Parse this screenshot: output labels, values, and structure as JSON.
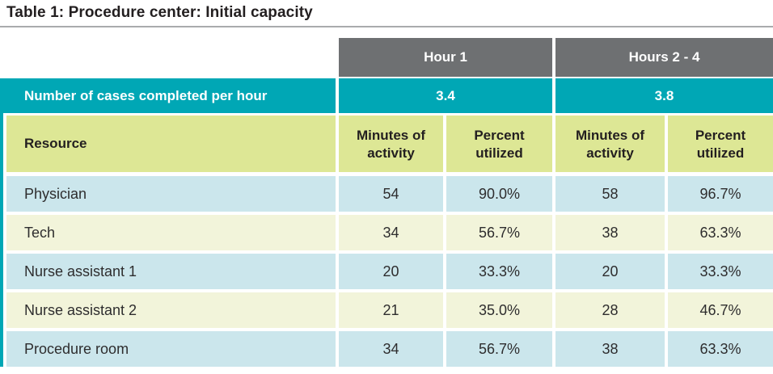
{
  "chart_data": {
    "type": "table",
    "title": "Table 1: Procedure center: Initial capacity",
    "group_headers": [
      "Hour 1",
      "Hours 2 - 4"
    ],
    "cases_label": "Number of cases completed per hour",
    "cases_values": [
      "3.4",
      "3.8"
    ],
    "columns": [
      "Resource",
      "Minutes of activity",
      "Percent utilized",
      "Minutes of activity",
      "Percent utilized"
    ],
    "rows": [
      {
        "resource": "Physician",
        "values": [
          "54",
          "90.0%",
          "58",
          "96.7%"
        ]
      },
      {
        "resource": "Tech",
        "values": [
          "34",
          "56.7%",
          "38",
          "63.3%"
        ]
      },
      {
        "resource": "Nurse assistant 1",
        "values": [
          "20",
          "33.3%",
          "20",
          "33.3%"
        ]
      },
      {
        "resource": "Nurse assistant 2",
        "values": [
          "21",
          "35.0%",
          "28",
          "46.7%"
        ]
      },
      {
        "resource": "Procedure room",
        "values": [
          "34",
          "56.7%",
          "38",
          "63.3%"
        ]
      }
    ],
    "layout": {
      "legend": "none",
      "grid": "off",
      "row_striping": [
        "blue",
        "cream"
      ]
    }
  },
  "colors": {
    "accent_teal": "#00a7b5",
    "header_gray": "#6e7072",
    "green_header_row": "#dde795",
    "blue_row": "#cbe6ec",
    "cream_row": "#f2f4da",
    "title_text": "#231f20",
    "rule_gray": "#a9abad",
    "header_text_white": "#ffffff"
  }
}
